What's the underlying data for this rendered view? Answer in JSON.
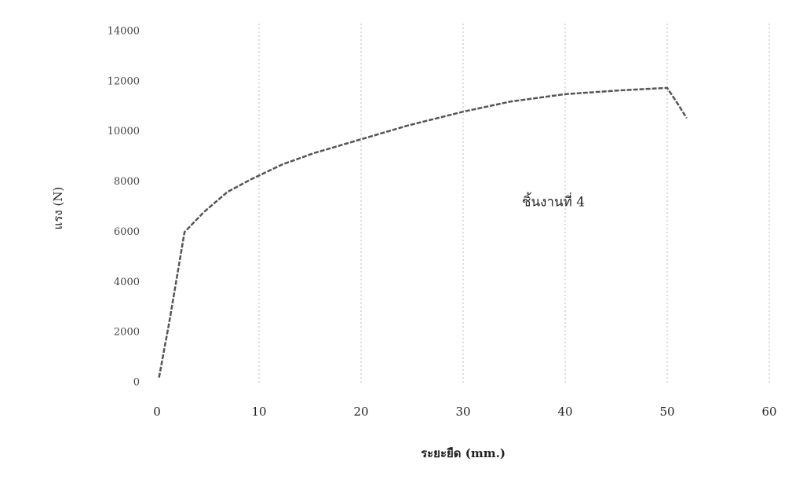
{
  "chart_data": {
    "type": "line",
    "y_label": "แรง (N)",
    "x_label": "ระยะยืด (mm.)",
    "annotation": "ชิ้นงานที่ 4",
    "x": [
      0.2,
      1.2,
      2.7,
      4.6,
      6.9,
      9.2,
      12.3,
      15.4,
      20,
      24.6,
      30,
      34.6,
      40,
      45.4,
      50,
      50.9,
      51.9
    ],
    "values": [
      200,
      2400,
      6000,
      6800,
      7600,
      8100,
      8700,
      9150,
      9700,
      10250,
      10800,
      11200,
      11500,
      11650,
      11750,
      11200,
      10550
    ],
    "color": "#555555",
    "xlim": [
      0,
      60
    ],
    "xticks": [
      0,
      10,
      20,
      30,
      40,
      50,
      60
    ],
    "ylim": [
      0,
      14000
    ],
    "yticks": [
      0,
      2000,
      4000,
      6000,
      8000,
      10000,
      12000,
      14000
    ],
    "grid": true
  }
}
